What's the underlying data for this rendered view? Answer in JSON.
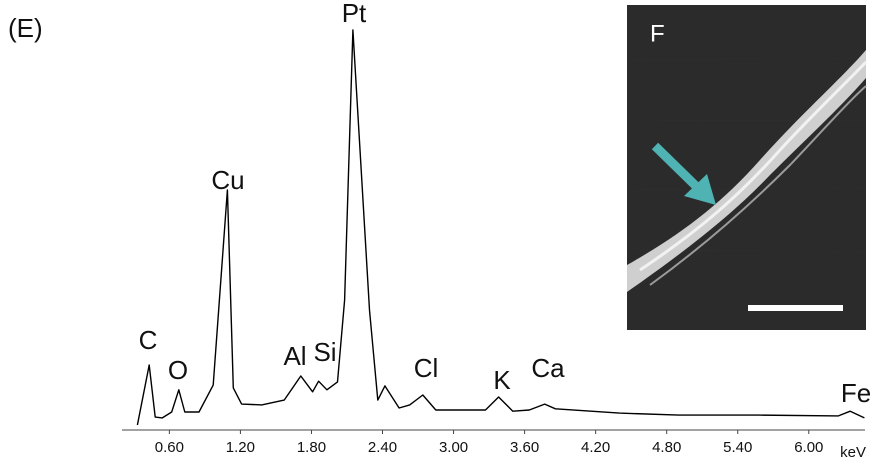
{
  "panel_label": "(E)",
  "inset": {
    "label": "F"
  },
  "chart_data": {
    "type": "line",
    "x": [
      0.33,
      0.43,
      0.48,
      0.54,
      0.62,
      0.68,
      0.73,
      0.85,
      0.97,
      1.09,
      1.14,
      1.21,
      1.38,
      1.57,
      1.71,
      1.81,
      1.86,
      1.93,
      2.02,
      2.08,
      2.15,
      2.29,
      2.36,
      2.42,
      2.54,
      2.63,
      2.74,
      2.85,
      3.27,
      3.38,
      3.5,
      3.64,
      3.77,
      3.86,
      4.4,
      4.9,
      5.58,
      6.25,
      6.35,
      6.47
    ],
    "values": [
      0,
      15.2,
      2.0,
      1.8,
      3.3,
      8.9,
      3.3,
      3.3,
      10.1,
      59.5,
      9.4,
      5.3,
      5.1,
      6.3,
      12.4,
      8.4,
      11.1,
      8.9,
      10.9,
      31.6,
      100,
      29.1,
      6.3,
      9.9,
      4.3,
      5.1,
      7.6,
      3.8,
      3.8,
      7.1,
      3.5,
      3.8,
      5.3,
      4.1,
      3.0,
      2.5,
      2.5,
      2.3,
      3.5,
      1.8
    ],
    "color": "#000000",
    "xlim": [
      0.2,
      6.5
    ],
    "xticks": [
      {
        "value": 0.6,
        "label": "0.60"
      },
      {
        "value": 1.2,
        "label": "1.20"
      },
      {
        "value": 1.8,
        "label": "1.80"
      },
      {
        "value": 2.4,
        "label": "2.40"
      },
      {
        "value": 3.0,
        "label": "3.00"
      },
      {
        "value": 3.6,
        "label": "3.60"
      },
      {
        "value": 4.2,
        "label": "4.20"
      },
      {
        "value": 4.8,
        "label": "4.80"
      },
      {
        "value": 5.4,
        "label": "5.40"
      },
      {
        "value": 6.0,
        "label": "6.00"
      }
    ],
    "ylim": [
      0,
      100
    ],
    "x_unit": "keV",
    "annotations": [
      "C",
      "O",
      "Cu",
      "Al",
      "Si",
      "Pt",
      "Cl",
      "K",
      "Ca",
      "Fe"
    ]
  }
}
